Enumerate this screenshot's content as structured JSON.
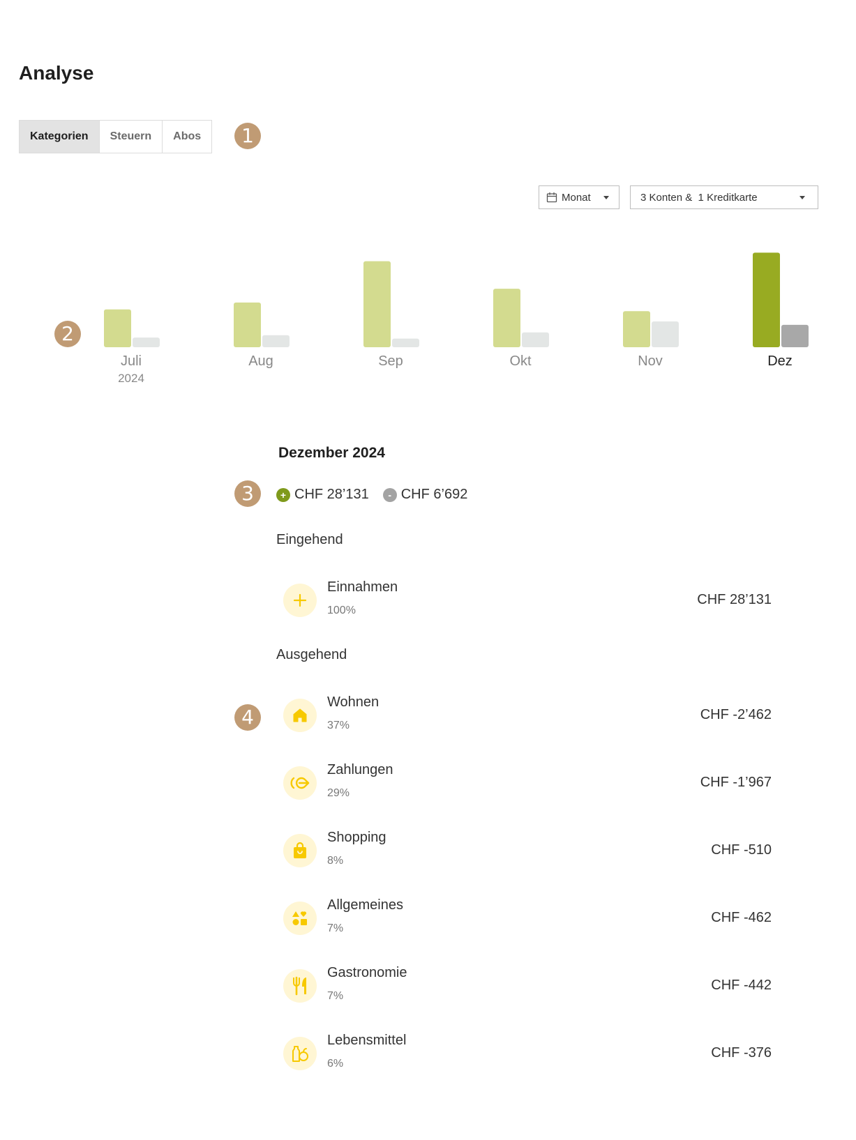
{
  "page": {
    "title": "Analyse"
  },
  "tabs": [
    {
      "label": "Kategorien",
      "active": true
    },
    {
      "label": "Steuern",
      "active": false
    },
    {
      "label": "Abos",
      "active": false
    }
  ],
  "markers": [
    "1",
    "2",
    "3",
    "4"
  ],
  "filters": {
    "period_icon": "calendar-icon",
    "period_label": "Monat",
    "accounts_label": "3 Konten &  1 Kreditkarte"
  },
  "chart_data": {
    "type": "bar",
    "categories": [
      "Juli",
      "Aug",
      "Sep",
      "Okt",
      "Nov",
      "Dez"
    ],
    "year_label": "2024",
    "selected": "Dez",
    "series": [
      {
        "key": "income",
        "values": [
          11,
          13,
          25,
          17,
          10.5,
          27.5
        ]
      },
      {
        "key": "expense",
        "values": [
          2.8,
          3.5,
          2.5,
          4.3,
          7.5,
          6.5
        ]
      }
    ],
    "ylim": [
      0,
      30
    ],
    "colors": {
      "income": "#d3db8f",
      "expense": "#e3e6e5",
      "income_selected": "#98ab22",
      "expense_selected": "#a8a8a8"
    }
  },
  "summary": {
    "title": "Dezember 2024",
    "income_sign": "+",
    "income_total": "CHF 28’131",
    "income_color": "#7f9a1c",
    "expense_sign": "-",
    "expense_total": "CHF 6’692",
    "expense_color": "#a3a3a3"
  },
  "incoming": {
    "label": "Eingehend",
    "items": [
      {
        "icon": "plus-icon",
        "name": "Einnahmen",
        "percent": "100%",
        "amount": "CHF 28’131"
      }
    ]
  },
  "outgoing": {
    "label": "Ausgehend",
    "items": [
      {
        "icon": "house-icon",
        "name": "Wohnen",
        "percent": "37%",
        "amount": "CHF -2’462"
      },
      {
        "icon": "payment-arrow-icon",
        "name": "Zahlungen",
        "percent": "29%",
        "amount": "CHF -1’967"
      },
      {
        "icon": "shopping-bag-icon",
        "name": "Shopping",
        "percent": "8%",
        "amount": "CHF -510"
      },
      {
        "icon": "shapes-icon",
        "name": "Allgemeines",
        "percent": "7%",
        "amount": "CHF -462"
      },
      {
        "icon": "fork-knife-icon",
        "name": "Gastronomie",
        "percent": "7%",
        "amount": "CHF -442"
      },
      {
        "icon": "groceries-icon",
        "name": "Lebensmittel",
        "percent": "6%",
        "amount": "CHF -376"
      }
    ]
  },
  "icon_color": "#f7c900"
}
